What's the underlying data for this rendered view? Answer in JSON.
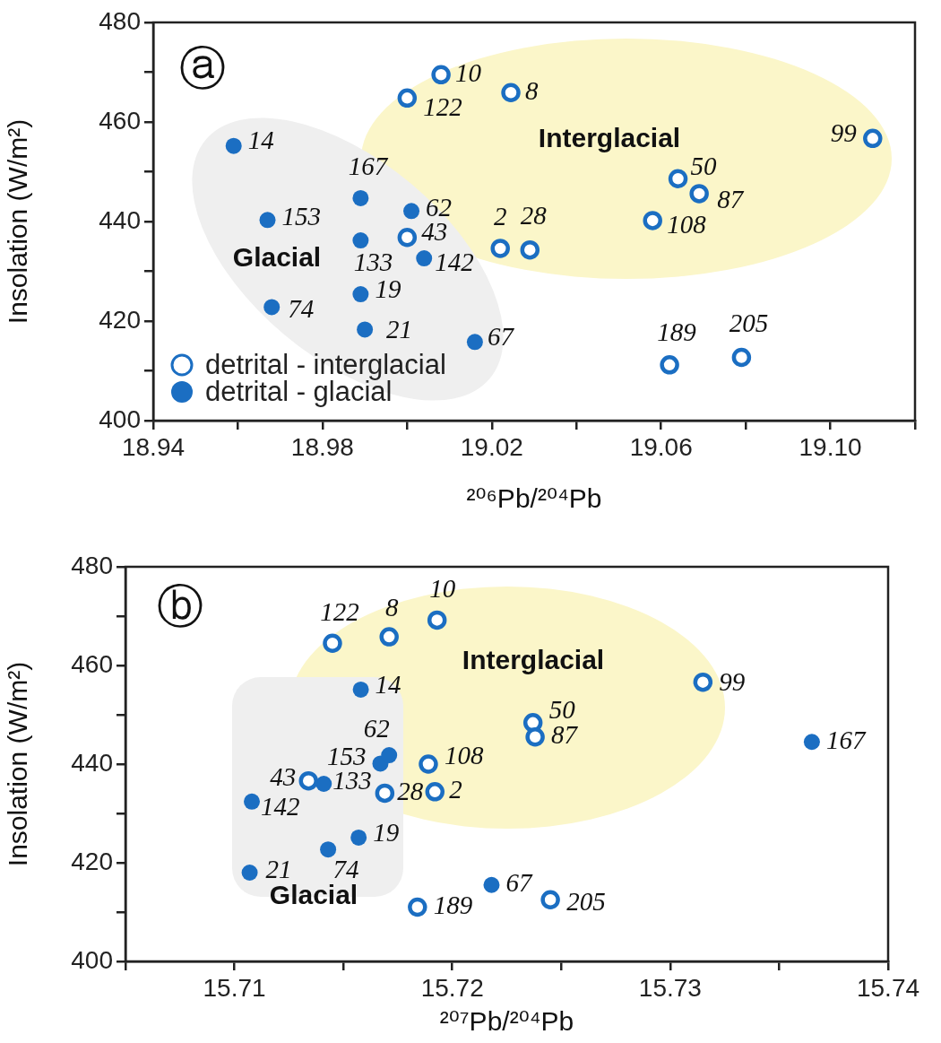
{
  "chart_data": [
    {
      "type": "scatter",
      "xlabel": "²⁰⁶Pb/²⁰⁴Pb",
      "ylabel": "Insolation (W/m²)",
      "xlim": [
        18.94,
        19.12
      ],
      "xticks": [
        18.94,
        {
          "value": 18.96,
          "label": null
        },
        18.98,
        {
          "value": 19.0,
          "label": null
        },
        19.02,
        {
          "value": 19.04,
          "label": null
        },
        19.06,
        {
          "value": 19.08,
          "label": null
        },
        {
          "value": 19.1,
          "label": "19.10"
        },
        {
          "value": 19.12,
          "label": null
        }
      ],
      "ylim": [
        400,
        480
      ],
      "yticks": [
        400,
        {
          "value": 410,
          "label": null
        },
        420,
        {
          "value": 430,
          "label": null
        },
        440,
        {
          "value": 450,
          "label": null
        },
        460,
        {
          "value": 470,
          "label": null
        },
        480
      ],
      "grid": false,
      "legend": "bottom left",
      "series": [
        {
          "name": "detrital - interglacial",
          "color": "#1b6ec2",
          "marker": "circle-open",
          "x": [
            19.008,
            19.0,
            19.0245,
            19.11,
            19.064,
            19.069,
            19.058,
            19.0,
            19.022,
            19.029,
            19.062,
            19.079
          ],
          "values": [
            469.5,
            464.8,
            465.9,
            456.7,
            448.6,
            445.6,
            440.2,
            436.8,
            434.6,
            434.3,
            411.2,
            412.7
          ]
        },
        {
          "name": "detrital - glacial",
          "color": "#1b6ec2",
          "marker": "circle",
          "x": [
            18.959,
            18.989,
            18.967,
            19.001,
            18.989,
            19.004,
            18.989,
            18.968,
            18.99,
            19.016
          ],
          "values": [
            455.2,
            444.7,
            440.3,
            442.1,
            436.2,
            432.6,
            425.4,
            422.8,
            418.3,
            415.8
          ]
        }
      ],
      "annotations": [
        "ⓐ",
        "Interglacial",
        "Glacial",
        {
          "text": "10",
          "x": 19.008,
          "y": 469.5
        },
        {
          "text": "122",
          "x": 19.0,
          "y": 464.8
        },
        {
          "text": "8",
          "x": 19.0245,
          "y": 465.9
        },
        {
          "text": "99",
          "x": 19.11,
          "y": 456.7
        },
        {
          "text": "50",
          "x": 19.064,
          "y": 448.6
        },
        {
          "text": "87",
          "x": 19.069,
          "y": 445.6
        },
        {
          "text": "108",
          "x": 19.058,
          "y": 440.2
        },
        {
          "text": "43",
          "x": 19.0,
          "y": 436.8
        },
        {
          "text": "2",
          "x": 19.022,
          "y": 434.6
        },
        {
          "text": "28",
          "x": 19.029,
          "y": 434.3
        },
        {
          "text": "189",
          "x": 19.062,
          "y": 411.2
        },
        {
          "text": "205",
          "x": 19.079,
          "y": 412.7
        },
        {
          "text": "14",
          "x": 18.959,
          "y": 455.2
        },
        {
          "text": "167",
          "x": 18.989,
          "y": 444.7
        },
        {
          "text": "153",
          "x": 18.967,
          "y": 440.3
        },
        {
          "text": "62",
          "x": 19.001,
          "y": 442.1
        },
        {
          "text": "133",
          "x": 18.989,
          "y": 436.2
        },
        {
          "text": "142",
          "x": 19.004,
          "y": 432.6
        },
        {
          "text": "19",
          "x": 18.989,
          "y": 425.4
        },
        {
          "text": "74",
          "x": 18.968,
          "y": 422.8
        },
        {
          "text": "21",
          "x": 18.99,
          "y": 418.3
        },
        {
          "text": "67",
          "x": 19.016,
          "y": 415.8
        }
      ]
    },
    {
      "type": "scatter",
      "xlabel": "²⁰⁷Pb/²⁰⁴Pb",
      "ylabel": "Insolation (W/m²)",
      "xlim": [
        15.705,
        15.74
      ],
      "xticks": [
        {
          "value": 15.705,
          "label": null
        },
        15.71,
        {
          "value": 15.715,
          "label": null
        },
        15.72,
        {
          "value": 15.725,
          "label": null
        },
        15.73,
        {
          "value": 15.735,
          "label": null
        },
        15.74
      ],
      "ylim": [
        400,
        480
      ],
      "yticks": [
        400,
        {
          "value": 410,
          "label": null
        },
        420,
        {
          "value": 430,
          "label": null
        },
        440,
        {
          "value": 450,
          "label": null
        },
        460,
        {
          "value": 470,
          "label": null
        },
        480
      ],
      "grid": false,
      "series": [
        {
          "color": "#1b6ec2",
          "marker": "circle-open",
          "x": [
            15.7193,
            15.7145,
            15.7171,
            15.7315,
            15.7237,
            15.7238,
            15.7189,
            15.7134,
            15.7192,
            15.7169,
            15.7184,
            15.7245
          ],
          "values": [
            469.2,
            464.5,
            465.8,
            456.6,
            448.4,
            445.5,
            440.0,
            436.6,
            434.4,
            434.1,
            411.0,
            412.5
          ]
        },
        {
          "color": "#1b6ec2",
          "marker": "circle",
          "x": [
            15.7158,
            15.7365,
            15.7167,
            15.7171,
            15.7141,
            15.7108,
            15.7157,
            15.7143,
            15.7107,
            15.7218
          ],
          "values": [
            455.1,
            444.5,
            440.1,
            441.8,
            436.0,
            432.4,
            425.1,
            422.7,
            418.0,
            415.5
          ]
        }
      ],
      "annotations": [
        "ⓑ",
        "Interglacial",
        "Glacial",
        {
          "text": "10",
          "x": 15.7193,
          "y": 469.2
        },
        {
          "text": "122",
          "x": 15.7145,
          "y": 464.5
        },
        {
          "text": "8",
          "x": 15.7171,
          "y": 465.8
        },
        {
          "text": "99",
          "x": 15.7315,
          "y": 456.6
        },
        {
          "text": "50",
          "x": 15.7237,
          "y": 448.4
        },
        {
          "text": "87",
          "x": 15.7238,
          "y": 445.5
        },
        {
          "text": "108",
          "x": 15.7189,
          "y": 440.0
        },
        {
          "text": "43",
          "x": 15.7134,
          "y": 436.6
        },
        {
          "text": "2",
          "x": 15.7192,
          "y": 434.4
        },
        {
          "text": "28",
          "x": 15.7169,
          "y": 434.1
        },
        {
          "text": "189",
          "x": 15.7184,
          "y": 411.0
        },
        {
          "text": "205",
          "x": 15.7245,
          "y": 412.5
        },
        {
          "text": "14",
          "x": 15.7158,
          "y": 455.1
        },
        {
          "text": "167",
          "x": 15.7365,
          "y": 444.5
        },
        {
          "text": "153",
          "x": 15.7167,
          "y": 440.1
        },
        {
          "text": "62",
          "x": 15.7171,
          "y": 441.8
        },
        {
          "text": "133",
          "x": 15.7141,
          "y": 436.0
        },
        {
          "text": "142",
          "x": 15.7108,
          "y": 432.4
        },
        {
          "text": "19",
          "x": 15.7157,
          "y": 425.1
        },
        {
          "text": "74",
          "x": 15.7143,
          "y": 422.7
        },
        {
          "text": "21",
          "x": 15.7107,
          "y": 418.0
        },
        {
          "text": "67",
          "x": 15.7218,
          "y": 415.5
        }
      ]
    }
  ]
}
